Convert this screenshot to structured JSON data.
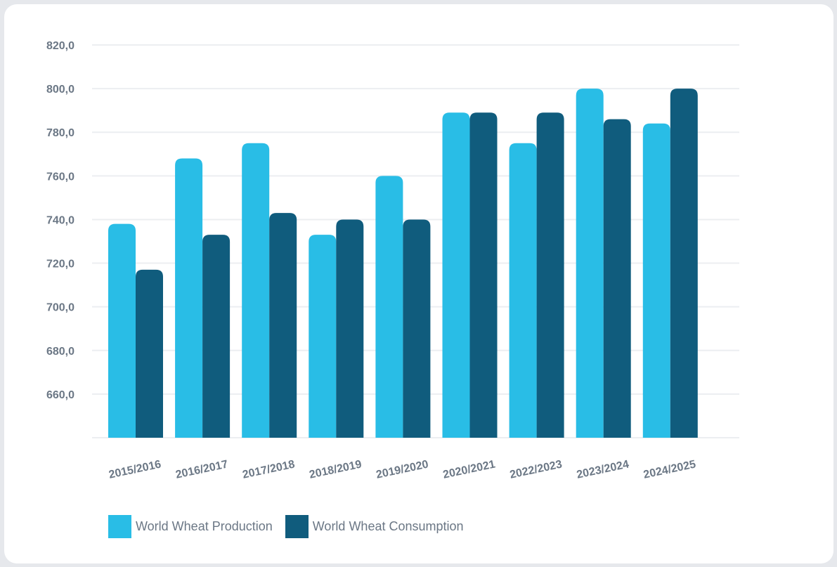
{
  "colors": {
    "production": "#29bde6",
    "consumption": "#105c7d",
    "grid": "#eceef1",
    "tick_text": "#6b7785"
  },
  "chart_data": {
    "type": "bar",
    "categories": [
      "2015/2016",
      "2016/2017",
      "2017/2018",
      "2018/2019",
      "2019/2020",
      "2020/2021",
      "2022/2023",
      "2023/2024",
      "2024/2025"
    ],
    "series": [
      {
        "name": "World Wheat Production",
        "values": [
          738,
          768,
          775,
          733,
          760,
          789,
          775,
          800,
          784
        ]
      },
      {
        "name": "World Wheat Consumption",
        "values": [
          717,
          733,
          743,
          740,
          740,
          789,
          789,
          786,
          800
        ]
      }
    ],
    "y_ticks": [
      "660,0",
      "680,0",
      "700,0",
      "720,0",
      "740,0",
      "760,0",
      "780,0",
      "800,0",
      "820,0"
    ],
    "ylim": [
      640,
      820
    ],
    "grid": true,
    "legend_position": "bottom-left",
    "title": "",
    "xlabel": "",
    "ylabel": ""
  }
}
